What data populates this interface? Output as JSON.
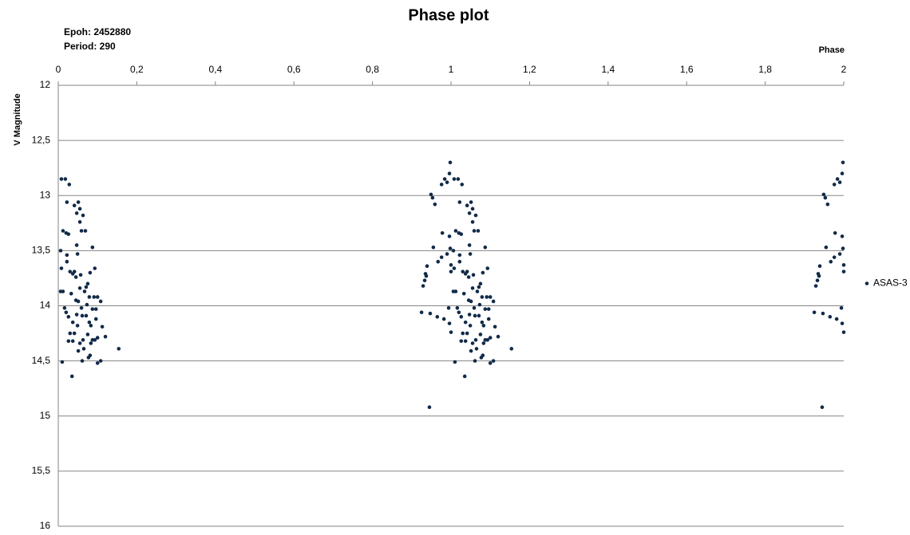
{
  "chart_data": {
    "type": "scatter",
    "title": "Phase plot",
    "annotations": [
      "Epoh: 2452880",
      "Period: 290"
    ],
    "x_label": "Phase",
    "y_label": "V Magnitude",
    "xlim": [
      0,
      2
    ],
    "xticks": [
      0,
      {
        "value": 0.2,
        "label": "0,2"
      },
      {
        "value": 0.4,
        "label": "0,4"
      },
      {
        "value": 0.6,
        "label": "0,6"
      },
      {
        "value": 0.8,
        "label": "0,8"
      },
      1,
      {
        "value": 1.2,
        "label": "1,2"
      },
      {
        "value": 1.4,
        "label": "1,4"
      },
      {
        "value": 1.6,
        "label": "1,6"
      },
      {
        "value": 1.8,
        "label": "1,8"
      },
      2
    ],
    "ylim": [
      12,
      16
    ],
    "y_inverted": true,
    "yticks": [
      12,
      {
        "value": 12.5,
        "label": "12,5"
      },
      13,
      {
        "value": 13.5,
        "label": "13,5"
      },
      14,
      {
        "value": 14.5,
        "label": "14,5"
      },
      15,
      {
        "value": 15.5,
        "label": "15,5"
      },
      16
    ],
    "grid": true,
    "legend": "right",
    "series": [
      {
        "name": "ASAS-3",
        "color": "#112a48",
        "x": [
          0.008,
          0.018,
          0.028,
          0.022,
          0.012,
          0.02,
          0.026,
          0.006,
          0.022,
          0.022,
          0.03,
          0.008,
          0.037,
          0.041,
          0.045,
          0.006,
          0.012,
          0.016,
          0.02,
          0.033,
          0.026,
          0.037,
          0.03,
          0.041,
          0.037,
          0.026,
          0.01,
          0.035,
          0.041,
          0.051,
          0.047,
          0.055,
          0.063,
          0.055,
          0.047,
          0.059,
          0.069,
          0.049,
          0.057,
          0.045,
          0.051,
          0.059,
          0.049,
          0.061,
          0.063,
          0.065,
          0.055,
          0.071,
          0.075,
          0.067,
          0.079,
          0.073,
          0.071,
          0.079,
          0.083,
          0.075,
          0.083,
          0.081,
          0.087,
          0.087,
          0.093,
          0.091,
          0.096,
          0.087,
          0.096,
          0.1,
          0.093,
          0.1,
          0.108,
          0.108,
          0.1,
          0.112,
          0.12,
          0.154,
          0.077,
          0.061,
          0.051,
          0.047,
          0.081,
          0.055,
          1.008,
          1.018,
          1.028,
          1.022,
          1.012,
          1.02,
          1.026,
          1.006,
          1.022,
          1.022,
          1.03,
          1.008,
          1.037,
          1.041,
          1.045,
          1.006,
          1.012,
          1.016,
          1.02,
          1.033,
          1.026,
          1.037,
          1.03,
          1.041,
          1.037,
          1.026,
          1.01,
          1.035,
          1.041,
          1.051,
          1.047,
          1.055,
          1.063,
          1.055,
          1.047,
          1.059,
          1.069,
          1.049,
          1.057,
          1.045,
          1.051,
          1.059,
          1.049,
          1.061,
          1.063,
          1.065,
          1.055,
          1.071,
          1.075,
          1.067,
          1.079,
          1.073,
          1.071,
          1.079,
          1.083,
          1.075,
          1.083,
          1.081,
          1.087,
          1.087,
          1.093,
          1.091,
          1.096,
          1.087,
          1.096,
          1.1,
          1.093,
          1.1,
          1.108,
          1.108,
          1.1,
          1.112,
          1.12,
          1.154,
          1.077,
          1.061,
          1.051,
          1.047,
          1.081,
          1.055,
          0.925,
          0.929,
          0.933,
          0.937,
          0.939,
          0.935,
          0.949,
          0.953,
          0.959,
          0.947,
          0.955,
          0.967,
          0.965,
          0.976,
          0.978,
          0.976,
          0.984,
          0.99,
          0.982,
          0.99,
          0.996,
          0.998,
          0.996,
          0.994,
          0.998,
          1.0,
          1.0,
          0.996,
          1.0,
          0.945,
          1.925,
          1.929,
          1.933,
          1.937,
          1.939,
          1.935,
          1.949,
          1.953,
          1.959,
          1.947,
          1.955,
          1.967,
          1.965,
          1.976,
          1.978,
          1.976,
          1.984,
          1.99,
          1.982,
          1.99,
          1.996,
          1.998,
          1.996,
          1.994,
          1.998,
          2.0,
          2.0,
          1.996,
          2.0,
          1.945
        ],
        "values": [
          12.85,
          12.85,
          12.9,
          13.06,
          13.32,
          13.34,
          13.35,
          13.5,
          13.54,
          13.6,
          13.69,
          13.66,
          13.71,
          13.69,
          13.74,
          13.87,
          13.87,
          14.02,
          14.06,
          13.89,
          14.1,
          14.15,
          14.25,
          14.25,
          14.32,
          14.32,
          14.51,
          14.64,
          13.09,
          13.06,
          13.16,
          13.12,
          13.18,
          13.24,
          13.45,
          13.32,
          13.32,
          13.53,
          13.72,
          13.95,
          13.96,
          14.02,
          14.18,
          14.09,
          14.31,
          14.39,
          14.34,
          13.83,
          13.8,
          13.87,
          13.92,
          13.99,
          14.09,
          14.15,
          14.18,
          14.26,
          14.34,
          14.45,
          14.31,
          13.47,
          13.66,
          13.92,
          14.03,
          14.03,
          14.12,
          14.29,
          14.31,
          14.52,
          14.5,
          13.96,
          13.92,
          14.19,
          14.28,
          14.39,
          14.47,
          14.5,
          14.41,
          14.08,
          13.7,
          13.84,
          12.85,
          12.85,
          12.9,
          13.06,
          13.32,
          13.34,
          13.35,
          13.5,
          13.54,
          13.6,
          13.69,
          13.66,
          13.71,
          13.69,
          13.74,
          13.87,
          13.87,
          14.02,
          14.06,
          13.89,
          14.1,
          14.15,
          14.25,
          14.25,
          14.32,
          14.32,
          14.51,
          14.64,
          13.09,
          13.06,
          13.16,
          13.12,
          13.18,
          13.24,
          13.45,
          13.32,
          13.32,
          13.53,
          13.72,
          13.95,
          13.96,
          14.02,
          14.18,
          14.09,
          14.31,
          14.39,
          14.34,
          13.83,
          13.8,
          13.87,
          13.92,
          13.99,
          14.09,
          14.15,
          14.18,
          14.26,
          14.34,
          14.45,
          14.31,
          13.47,
          13.66,
          13.92,
          14.03,
          14.03,
          14.12,
          14.29,
          14.31,
          14.52,
          14.5,
          13.96,
          13.92,
          14.19,
          14.28,
          14.39,
          14.47,
          14.5,
          14.41,
          14.08,
          13.7,
          13.84,
          14.06,
          13.82,
          13.77,
          13.73,
          13.64,
          13.71,
          12.99,
          13.02,
          13.08,
          14.07,
          13.47,
          13.6,
          14.1,
          13.56,
          13.34,
          12.9,
          12.85,
          12.88,
          14.12,
          13.53,
          13.37,
          12.7,
          12.8,
          14.02,
          13.48,
          13.63,
          13.69,
          14.16,
          14.24,
          14.92,
          14.06,
          13.82,
          13.77,
          13.73,
          13.64,
          13.71,
          12.99,
          13.02,
          13.08,
          14.07,
          13.47,
          13.6,
          14.1,
          13.56,
          13.34,
          12.9,
          12.85,
          12.88,
          14.12,
          13.53,
          13.37,
          12.7,
          12.8,
          14.02,
          13.48,
          13.63,
          13.69,
          14.16,
          14.24,
          14.92
        ]
      }
    ]
  }
}
